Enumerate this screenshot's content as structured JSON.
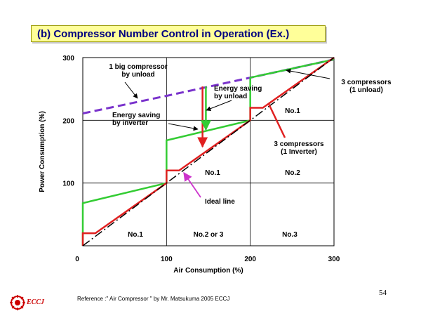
{
  "slide_title": "(b) Compressor Number Control in Operation (Ex.)",
  "reference": "Reference :\" Air Compressor \" by Mr. Matsukuma   2005 ECCJ",
  "page_number": "54",
  "logo_text": "ECCJ",
  "colors": {
    "big": "#7a33cc",
    "green": "#33cc33",
    "red": "#e02020",
    "ideal": "#000000"
  },
  "chart_data": {
    "type": "line",
    "xlabel": "Air Consumption (%)",
    "ylabel": "Power Consumption (%)",
    "xlim": [
      0,
      300
    ],
    "ylim": [
      0,
      300
    ],
    "xticks": [
      "0",
      "100",
      "200",
      "300"
    ],
    "yticks": [
      "100",
      "200",
      "300"
    ],
    "grid": true,
    "series": [
      {
        "name": "1 big compressor by unload",
        "style": "dashed",
        "color": "#7a33cc",
        "points": [
          [
            0,
            211
          ],
          [
            100,
            239
          ],
          [
            200,
            268
          ],
          [
            300,
            297
          ]
        ]
      },
      {
        "name": "3 compressors (1 unload)",
        "style": "solid",
        "color": "#33cc33",
        "points": [
          [
            0,
            0
          ],
          [
            0,
            68
          ],
          [
            100,
            100
          ],
          [
            100,
            168
          ],
          [
            200,
            200
          ],
          [
            200,
            268
          ],
          [
            300,
            297
          ]
        ]
      },
      {
        "name": "3 compressors (1 Inverter)",
        "style": "solid",
        "color": "#e02020",
        "points": [
          [
            0,
            0
          ],
          [
            0,
            20
          ],
          [
            15,
            20
          ],
          [
            100,
            100
          ],
          [
            100,
            120
          ],
          [
            115,
            120
          ],
          [
            200,
            200
          ],
          [
            200,
            220
          ],
          [
            215,
            220
          ],
          [
            300,
            300
          ]
        ]
      },
      {
        "name": "Ideal line",
        "style": "dashdot",
        "color": "#000000",
        "points": [
          [
            0,
            0
          ],
          [
            300,
            300
          ]
        ]
      }
    ],
    "energy_arrows": [
      {
        "color": "#e02020",
        "x": 143,
        "y_from": 254,
        "y_to": 158
      },
      {
        "color": "#33cc33",
        "x": 147,
        "y_from": 254,
        "y_to": 185
      }
    ],
    "annotations": [
      {
        "id": "big",
        "lines": [
          "1 big compressor",
          "by unload"
        ]
      },
      {
        "id": "saving-unload",
        "lines": [
          "Energy saving",
          "by unload"
        ]
      },
      {
        "id": "saving-inverter",
        "lines": [
          "Energy saving",
          "by inverter"
        ]
      },
      {
        "id": "three-unload",
        "lines": [
          "3 compressors",
          "(1 unload)"
        ]
      },
      {
        "id": "three-inverter",
        "lines": [
          "3 compressors",
          "(1 Inverter)"
        ]
      },
      {
        "id": "ideal",
        "lines": [
          "Ideal line"
        ]
      }
    ],
    "region_labels": [
      {
        "id": "r1",
        "text": "No.1"
      },
      {
        "id": "r2",
        "text": "No.2 or 3"
      },
      {
        "id": "r3",
        "text": "No.3"
      },
      {
        "id": "r4",
        "text": "No.1"
      },
      {
        "id": "r5",
        "text": "No.2"
      },
      {
        "id": "r6",
        "text": "No.1"
      }
    ]
  }
}
